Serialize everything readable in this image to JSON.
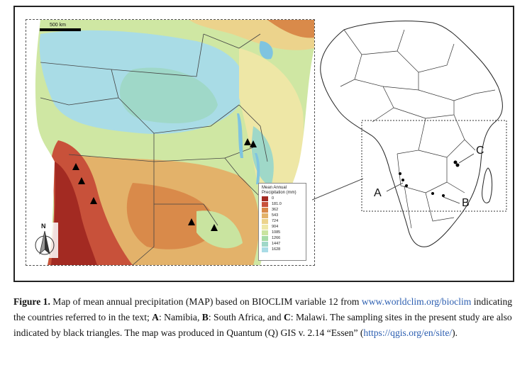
{
  "figure": {
    "scale_bar_label": "500 km",
    "north_label": "N",
    "legend": {
      "title_line1": "Mean Annual",
      "title_line2": "Precipitation (mm)",
      "entries": [
        {
          "label": "0",
          "color": "#a32a22"
        },
        {
          "label": "181.0",
          "color": "#c8513a"
        },
        {
          "label": "362",
          "color": "#d98a4a"
        },
        {
          "label": "543",
          "color": "#e3b26a"
        },
        {
          "label": "724",
          "color": "#ecd38c"
        },
        {
          "label": "904",
          "color": "#eee7a6"
        },
        {
          "label": "1085",
          "color": "#c9e4a0"
        },
        {
          "label": "1266",
          "color": "#a6dba6"
        },
        {
          "label": "1447",
          "color": "#9fd8c8"
        },
        {
          "label": "1628",
          "color": "#a9dce6"
        }
      ]
    },
    "site_labels": {
      "a": "A",
      "b": "B",
      "c": "C"
    }
  },
  "caption": {
    "figure_label": "Figure 1.",
    "text_1": " Map of mean annual precipitation (MAP) based on BIOCLIM variable 12 from ",
    "link_1": "www.worldclim.org/bioclim",
    "text_2": " indicating the countries referred to in the text; ",
    "a_label": "A",
    "a_text": ": Namibia, ",
    "b_label": "B",
    "b_text": ": South Africa, and ",
    "c_label": "C",
    "c_text": ": Malawi. The sampling sites in the present study are also indicated by black triangles. The map was produced in Quantum (Q) GIS v. 2.14 “Essen” (",
    "link_2": "https://qgis.org/en/site/",
    "text_end": ")."
  }
}
